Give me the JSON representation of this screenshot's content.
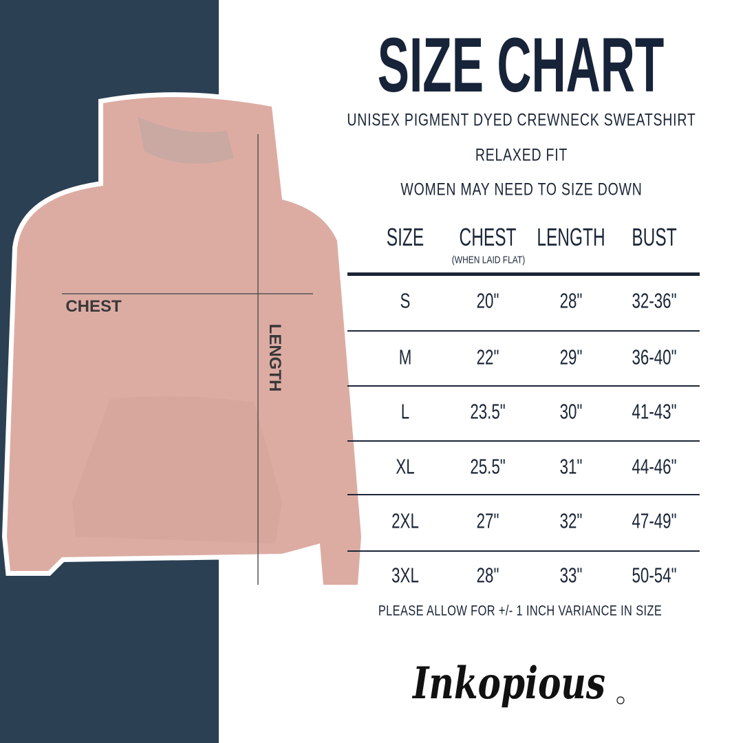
{
  "title": "SIZE CHART",
  "subtitle_lines": [
    "UNISEX PIGMENT DYED CREWNECK SWEATSHIRT",
    "RELAXED FIT",
    "WOMEN MAY NEED TO SIZE DOWN"
  ],
  "image_labels": {
    "chest": "CHEST",
    "length": "LENGTH"
  },
  "table": {
    "headers": [
      "SIZE",
      "CHEST",
      "LENGTH",
      "BUST"
    ],
    "chest_note": "(WHEN LAID FLAT)",
    "rows": [
      [
        "S",
        "20\"",
        "28\"",
        "32-36\""
      ],
      [
        "M",
        "22\"",
        "29\"",
        "36-40\""
      ],
      [
        "L",
        "23.5\"",
        "30\"",
        "41-43\""
      ],
      [
        "XL",
        "25.5\"",
        "31\"",
        "44-46\""
      ],
      [
        "2XL",
        "27\"",
        "32\"",
        "47-49\""
      ],
      [
        "3XL",
        "28\"",
        "33\"",
        "50-54\""
      ]
    ]
  },
  "note": "PLEASE ALLOW FOR +/- 1 INCH VARIANCE IN SIZE",
  "logo": "Inkopious",
  "colors": {
    "panel": "#2c4054",
    "text": "#1b2537",
    "garment": "#dcaca3"
  }
}
